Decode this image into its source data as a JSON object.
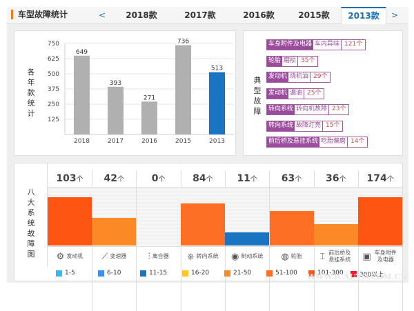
{
  "header": {
    "title": "车型故障统计",
    "prev_label": "<",
    "next_label": ">",
    "tabs": [
      {
        "label": "2018款",
        "active": false
      },
      {
        "label": "2017款",
        "active": false
      },
      {
        "label": "2016款",
        "active": false
      },
      {
        "label": "2015款",
        "active": false
      },
      {
        "label": "2013款",
        "active": true
      }
    ]
  },
  "chart_data": {
    "type": "bar",
    "title": "",
    "ylabel": "各年款统计",
    "xlabel": "",
    "categories": [
      "2018",
      "2017",
      "2016",
      "2015",
      "2013"
    ],
    "values": [
      649,
      393,
      271,
      736,
      513
    ],
    "highlight": "2013",
    "yticks": [
      125,
      250,
      375,
      500,
      625,
      750
    ],
    "ylim": [
      0,
      750
    ],
    "grid": true,
    "colors": {
      "default": "#b0b0b0",
      "highlight": "#1a74c1"
    }
  },
  "typical_faults": {
    "label": "典型故障",
    "items": [
      {
        "system": "车身附件及电器",
        "issue": "车内异味",
        "count": "121个"
      },
      {
        "system": "轮胎",
        "issue": "磨损",
        "count": "35个"
      },
      {
        "system": "发动机",
        "issue": "烧机油",
        "count": "29个"
      },
      {
        "system": "发动机",
        "issue": "漏油",
        "count": "25个"
      },
      {
        "system": "转向系统",
        "issue": "转向机故障",
        "count": "23个"
      },
      {
        "system": "转向系统",
        "issue": "故障灯亮",
        "count": "15个"
      },
      {
        "system": "前后桥及悬挂系统",
        "issue": "吃胎偏磨",
        "count": "14个"
      }
    ]
  },
  "system_chart": {
    "label": "八大系统故障图",
    "unit": "个",
    "systems": [
      {
        "name": "发动机",
        "count": 103,
        "icon": "engine-icon",
        "color": "#fe5512"
      },
      {
        "name": "变速器",
        "count": 42,
        "icon": "gear-shift-icon",
        "color": "#fb8a26"
      },
      {
        "name": "离合器",
        "count": 0,
        "icon": "clutch-icon",
        "color": "#f7f7f7"
      },
      {
        "name": "转向系统",
        "count": 84,
        "icon": "steering-wheel-icon",
        "color": "#fd6f24"
      },
      {
        "name": "制动系统",
        "count": 11,
        "icon": "brake-disc-icon",
        "color": "#1a74c1"
      },
      {
        "name": "轮胎",
        "count": 63,
        "icon": "tire-icon",
        "color": "#fd6f24"
      },
      {
        "name": "前后桥及悬挂系统",
        "count": 36,
        "icon": "suspension-icon",
        "color": "#fb8a26"
      },
      {
        "name": "车身附件及电器",
        "count": 174,
        "icon": "battery-icon",
        "color": "#fe5512"
      }
    ]
  },
  "legend": [
    {
      "label": "1-5",
      "color": "#37b6f4"
    },
    {
      "label": "6-10",
      "color": "#3a8ef0"
    },
    {
      "label": "11-15",
      "color": "#1a74c1"
    },
    {
      "label": "16-20",
      "color": "#fbc62b"
    },
    {
      "label": "21-50",
      "color": "#fb8a26"
    },
    {
      "label": "51-100",
      "color": "#fd6f24"
    },
    {
      "label": "101-300",
      "color": "#fe5512"
    },
    {
      "label": "300以上",
      "color": "#f0202d"
    }
  ],
  "watermark": "WWW.ICAUTO.COM.CN"
}
